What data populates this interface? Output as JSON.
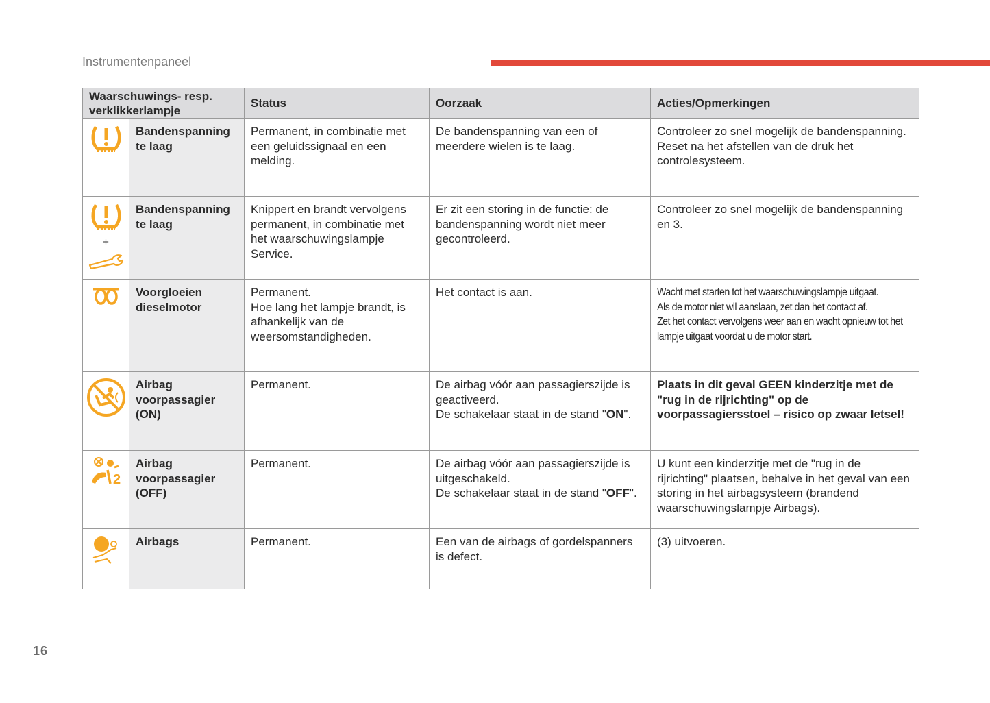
{
  "header": {
    "section_title": "Instrumentenpaneel",
    "page_number": "16"
  },
  "table": {
    "columns": [
      "Waarschuwings- resp. verklikkerlampje",
      "Status",
      "Oorzaak",
      "Acties/Opmerkingen"
    ],
    "rows": [
      {
        "icon": "tyre-pressure-icon",
        "name": "Bandenspanning te laag",
        "status": "Permanent, in combinatie met een geluidssignaal en een melding.",
        "cause": "De bandenspanning van een of meerdere wielen is te laag.",
        "action": "Controleer zo snel mogelijk de bandenspanning.\nReset na het afstellen van de druk het controlesysteem."
      },
      {
        "icon": "tyre-pressure-plus-service-icon",
        "plus": "+",
        "name": "Bandenspanning te laag",
        "status": "Knippert en brandt vervolgens permanent, in combinatie met het waarschuwingslampje Service.",
        "cause": "Er zit een storing in de functie: de bandenspanning wordt niet meer gecontroleerd.",
        "action": "Controleer zo snel mogelijk de bandenspanning en 3."
      },
      {
        "icon": "preheat-coil-icon",
        "name": "Voorgloeien dieselmotor",
        "status": "Permanent.\nHoe lang het lampje brandt, is afhankelijk van de weersomstandigheden.",
        "cause": "Het contact is aan.",
        "action": "Wacht met starten tot het waarschuwingslampje uitgaat.\nAls de motor niet wil aanslaan, zet dan het contact af.\nZet het contact vervolgens weer aan en wacht opnieuw tot het lampje uitgaat voordat u de motor start."
      },
      {
        "icon": "passenger-airbag-on-icon",
        "name": "Airbag voorpassagier (ON)",
        "status": "Permanent.",
        "cause_pre": "De airbag vóór aan passagierszijde is geactiveerd.\nDe schakelaar staat in de stand \"",
        "cause_bold": "ON",
        "cause_post": "\".",
        "action": "Plaats in dit geval GEEN kinderzitje met de \"rug in de rijrichting\" op de voorpassagiersstoel – risico op zwaar letsel!"
      },
      {
        "icon": "passenger-airbag-off-icon",
        "name": "Airbag voorpassagier (OFF)",
        "status": "Permanent.",
        "cause_pre": "De airbag vóór aan passagierszijde is uitgeschakeld.\nDe schakelaar staat in de stand \"",
        "cause_bold": "OFF",
        "cause_post": "\".",
        "action": "U kunt een kinderzitje met de \"rug in de rijrichting\" plaatsen, behalve in het geval van een storing in het airbagsysteem (brandend waarschuwingslampje Airbags)."
      },
      {
        "icon": "airbags-icon",
        "name": "Airbags",
        "status": "Permanent.",
        "cause": "Een van de airbags of gordelspanners is defect.",
        "action": "(3) uitvoeren."
      }
    ]
  },
  "colors": {
    "accent": "#e2483a",
    "icon": "#f5a623"
  }
}
